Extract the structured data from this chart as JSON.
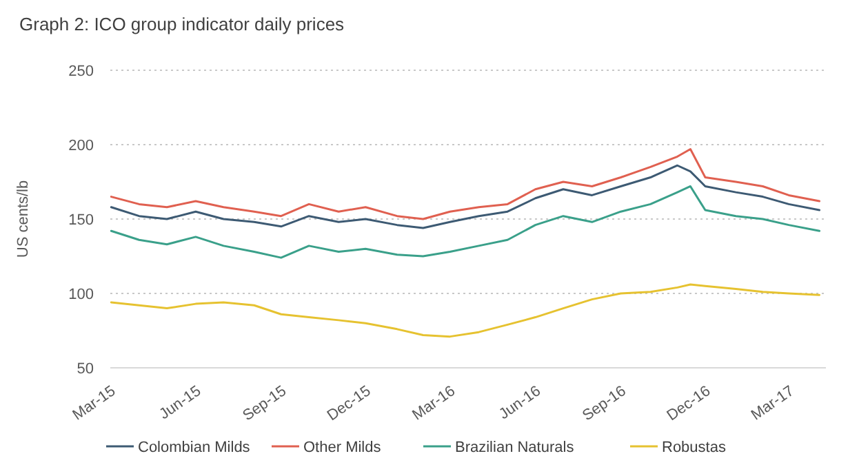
{
  "chart_data": {
    "type": "line",
    "title": "Graph 2: ICO group indicator daily prices",
    "ylabel": "US cents/lb",
    "x": [
      "2015-03-02",
      "2015-04-01",
      "2015-05-01",
      "2015-06-01",
      "2015-07-01",
      "2015-08-03",
      "2015-09-01",
      "2015-10-01",
      "2015-11-02",
      "2015-12-01",
      "2016-01-04",
      "2016-02-01",
      "2016-03-01",
      "2016-04-01",
      "2016-05-02",
      "2016-06-01",
      "2016-07-01",
      "2016-08-01",
      "2016-09-01",
      "2016-10-03",
      "2016-11-01",
      "2016-11-15",
      "2016-12-01",
      "2017-01-03",
      "2017-02-01",
      "2017-03-01",
      "2017-04-03"
    ],
    "series": [
      {
        "name": "Colombian Milds",
        "color": "#3d5a73",
        "values": [
          158,
          152,
          150,
          155,
          150,
          148,
          145,
          152,
          148,
          150,
          146,
          144,
          148,
          152,
          155,
          164,
          170,
          166,
          172,
          178,
          186,
          182,
          172,
          168,
          165,
          160,
          156
        ]
      },
      {
        "name": "Other Milds",
        "color": "#e06050",
        "values": [
          165,
          160,
          158,
          162,
          158,
          155,
          152,
          160,
          155,
          158,
          152,
          150,
          155,
          158,
          160,
          170,
          175,
          172,
          178,
          185,
          192,
          197,
          178,
          175,
          172,
          166,
          162
        ]
      },
      {
        "name": "Brazilian Naturals",
        "color": "#3aa08a",
        "values": [
          142,
          136,
          133,
          138,
          132,
          128,
          124,
          132,
          128,
          130,
          126,
          125,
          128,
          132,
          136,
          146,
          152,
          148,
          155,
          160,
          168,
          172,
          156,
          152,
          150,
          146,
          142
        ]
      },
      {
        "name": "Robustas",
        "color": "#e6c230",
        "values": [
          94,
          92,
          90,
          93,
          94,
          92,
          86,
          84,
          82,
          80,
          76,
          72,
          71,
          74,
          79,
          84,
          90,
          96,
          100,
          101,
          104,
          106,
          105,
          103,
          101,
          100,
          99
        ]
      }
    ],
    "ylim": [
      50,
      250
    ],
    "yticks": [
      50,
      100,
      150,
      200,
      250
    ],
    "xlim": [
      "2015-03-01",
      "2017-04-10"
    ],
    "xticks": [
      {
        "value": "2015-03-01",
        "label": "Mar-15"
      },
      {
        "value": "2015-06-01",
        "label": "Jun-15"
      },
      {
        "value": "2015-09-01",
        "label": "Sep-15"
      },
      {
        "value": "2015-12-01",
        "label": "Dec-15"
      },
      {
        "value": "2016-03-01",
        "label": "Mar-16"
      },
      {
        "value": "2016-06-01",
        "label": "Jun-16"
      },
      {
        "value": "2016-09-01",
        "label": "Sep-16"
      },
      {
        "value": "2016-12-01",
        "label": "Dec-16"
      },
      {
        "value": "2017-03-01",
        "label": "Mar-17"
      }
    ],
    "grid": "y",
    "legend": "bottom",
    "marker": "none",
    "line_style": "solid"
  }
}
